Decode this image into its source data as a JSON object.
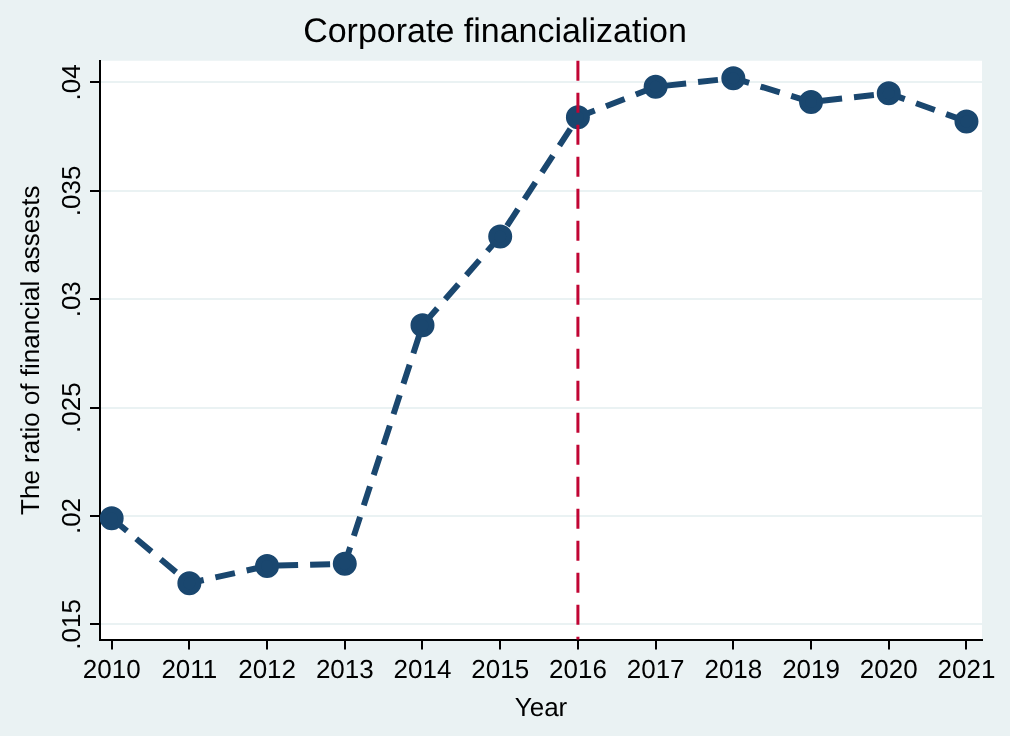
{
  "chart_data": {
    "type": "line",
    "title": "Corporate financialization",
    "xlabel": "Year",
    "ylabel": "The ratio of financial assests",
    "x": [
      2010,
      2011,
      2012,
      2013,
      2014,
      2015,
      2016,
      2017,
      2018,
      2019,
      2020,
      2021
    ],
    "series": [
      {
        "color": "#1a476f",
        "values": [
          0.0199,
          0.0169,
          0.0177,
          0.0178,
          0.0288,
          0.0329,
          0.0384,
          0.0398,
          0.0402,
          0.0391,
          0.0395,
          0.0382
        ]
      }
    ],
    "xlim": [
      2009.85,
      2021.2
    ],
    "xticks": [
      2010,
      2011,
      2012,
      2013,
      2014,
      2015,
      2016,
      2017,
      2018,
      2019,
      2020,
      2021
    ],
    "ylim": [
      0.0143,
      0.041
    ],
    "yticks": [
      {
        "value": 0.015,
        "label": ".015"
      },
      {
        "value": 0.02,
        "label": ".02"
      },
      {
        "value": 0.025,
        "label": ".025"
      },
      {
        "value": 0.03,
        "label": ".03"
      },
      {
        "value": 0.035,
        "label": ".035"
      },
      {
        "value": 0.04,
        "label": ".04"
      }
    ],
    "ref_lines": [
      {
        "axis": "x",
        "value": 2016,
        "color": "#c10534",
        "line_style": "dashed"
      }
    ],
    "grid": "y",
    "legend": false,
    "marker": "circle",
    "line_style": "dashed"
  }
}
